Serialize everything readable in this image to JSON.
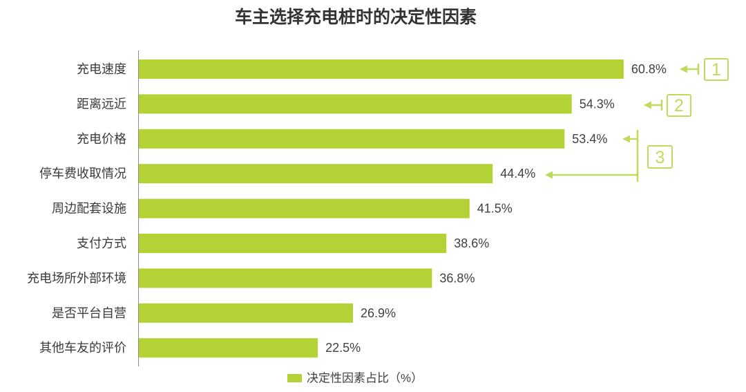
{
  "colors": {
    "bar": "#b2d235",
    "annotation": "#bfda5f",
    "axis": "#8c8c8c"
  },
  "chart_data": {
    "type": "bar",
    "orientation": "horizontal",
    "title": "车主选择充电桩时的决定性因素",
    "categories": [
      "充电速度",
      "距离远近",
      "充电价格",
      "停车费收取情况",
      "周边配套设施",
      "支付方式",
      "充电场所外部环境",
      "是否平台自营",
      "其他车友的评价"
    ],
    "series": [
      {
        "name": "决定性因素占比（%）",
        "values": [
          60.8,
          54.3,
          53.4,
          44.4,
          41.5,
          38.6,
          36.8,
          26.9,
          22.5
        ]
      }
    ],
    "data_labels": [
      "60.8%",
      "54.3%",
      "53.4%",
      "44.4%",
      "41.5%",
      "38.6%",
      "36.8%",
      "26.9%",
      "22.5%"
    ],
    "grid": false,
    "legend_position": "bottom",
    "annotations": [
      {
        "label": "1",
        "targets": [
          0
        ]
      },
      {
        "label": "2",
        "targets": [
          1
        ]
      },
      {
        "label": "3",
        "targets": [
          2,
          3
        ]
      }
    ]
  }
}
